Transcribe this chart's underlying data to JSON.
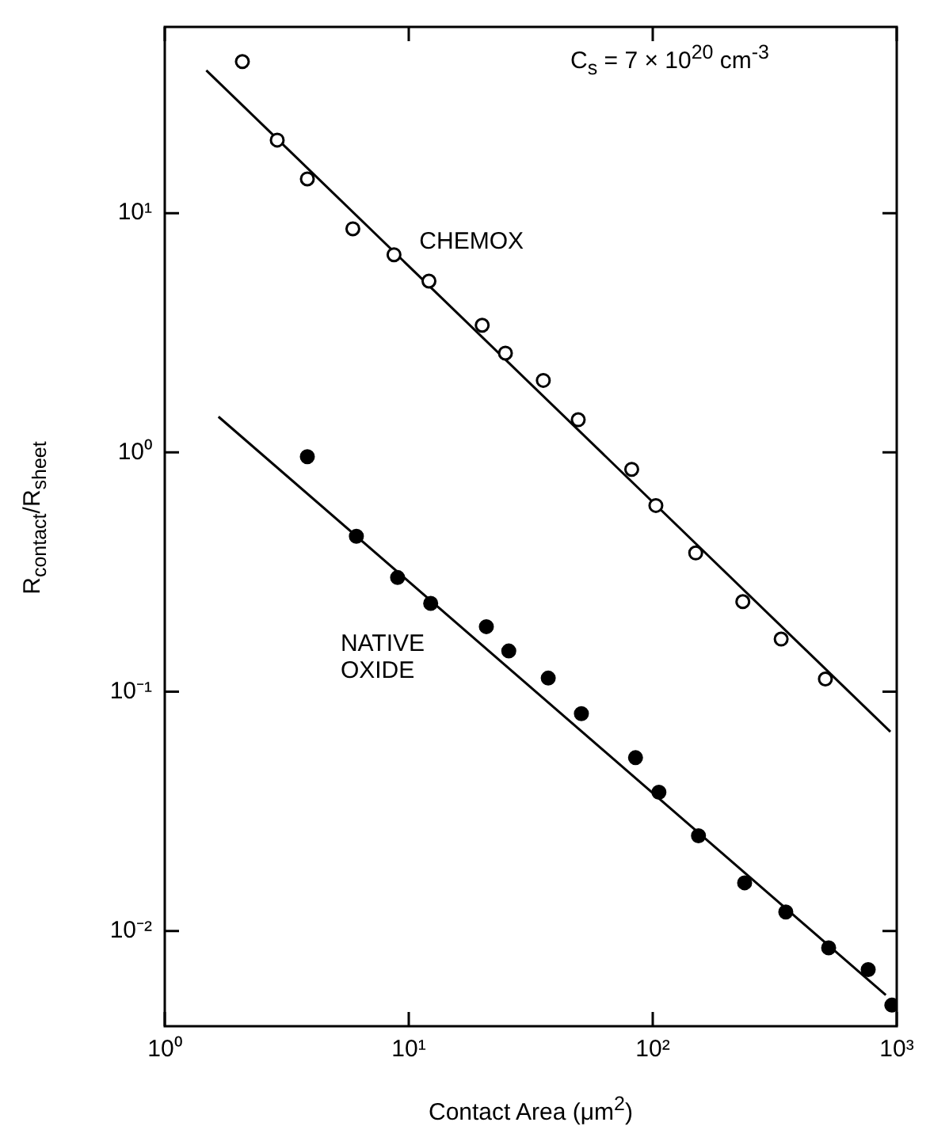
{
  "chart_data": {
    "type": "scatter",
    "xlabel": "Contact Area (μm$^{2}$)",
    "ylabel": "R$_{contact}$/R$_{sheet}$",
    "annotations": [
      "C$_{s}$ = 7 × 10$^{20}$ cm$^{-3}$"
    ],
    "log": "xy",
    "xlim": [
      1,
      1000
    ],
    "ylim": [
      0.004,
      60
    ],
    "xticks": [
      {
        "value": 1,
        "label": "10⁰"
      },
      {
        "value": 10,
        "label": "10¹"
      },
      {
        "value": 100,
        "label": "10²"
      },
      {
        "value": 1000,
        "label": "10³"
      }
    ],
    "yticks": [
      {
        "value": 0.01,
        "label": "10⁻²"
      },
      {
        "value": 0.1,
        "label": "10⁻¹"
      },
      {
        "value": 1,
        "label": "10⁰"
      },
      {
        "value": 10,
        "label": "10¹"
      }
    ],
    "grid": false,
    "legend": false,
    "marker": "circle",
    "series": [
      {
        "name": "CHEMOX",
        "color": "#000000",
        "x": [
          2.08,
          2.89,
          3.84,
          5.9,
          8.7,
          12.1,
          20,
          24.9,
          35.6,
          49.5,
          82,
          103,
          150,
          234,
          336,
          510
        ],
        "values": [
          43,
          20.2,
          13.9,
          8.6,
          6.7,
          5.2,
          3.4,
          2.6,
          2.0,
          1.37,
          0.85,
          0.6,
          0.38,
          0.238,
          0.166,
          0.113
        ]
      },
      {
        "name": "NATIVE OXIDE",
        "color": "#000000",
        "x": [
          3.84,
          6.1,
          9.0,
          12.3,
          20.8,
          25.7,
          37.3,
          51,
          85,
          106,
          154,
          238,
          351,
          526,
          764,
          955
        ],
        "values": [
          0.96,
          0.446,
          0.3,
          0.234,
          0.187,
          0.148,
          0.114,
          0.081,
          0.053,
          0.038,
          0.025,
          0.0159,
          0.012,
          0.0085,
          0.0069,
          0.0049
        ]
      },
      {
        "type": "line",
        "color": "#000000",
        "marker": "none",
        "x": [
          1.48,
          942
        ],
        "values": [
          39.5,
          0.068
        ]
      },
      {
        "type": "line",
        "color": "#000000",
        "marker": "none",
        "x": [
          1.66,
          902
        ],
        "values": [
          1.41,
          0.0054
        ]
      }
    ]
  }
}
